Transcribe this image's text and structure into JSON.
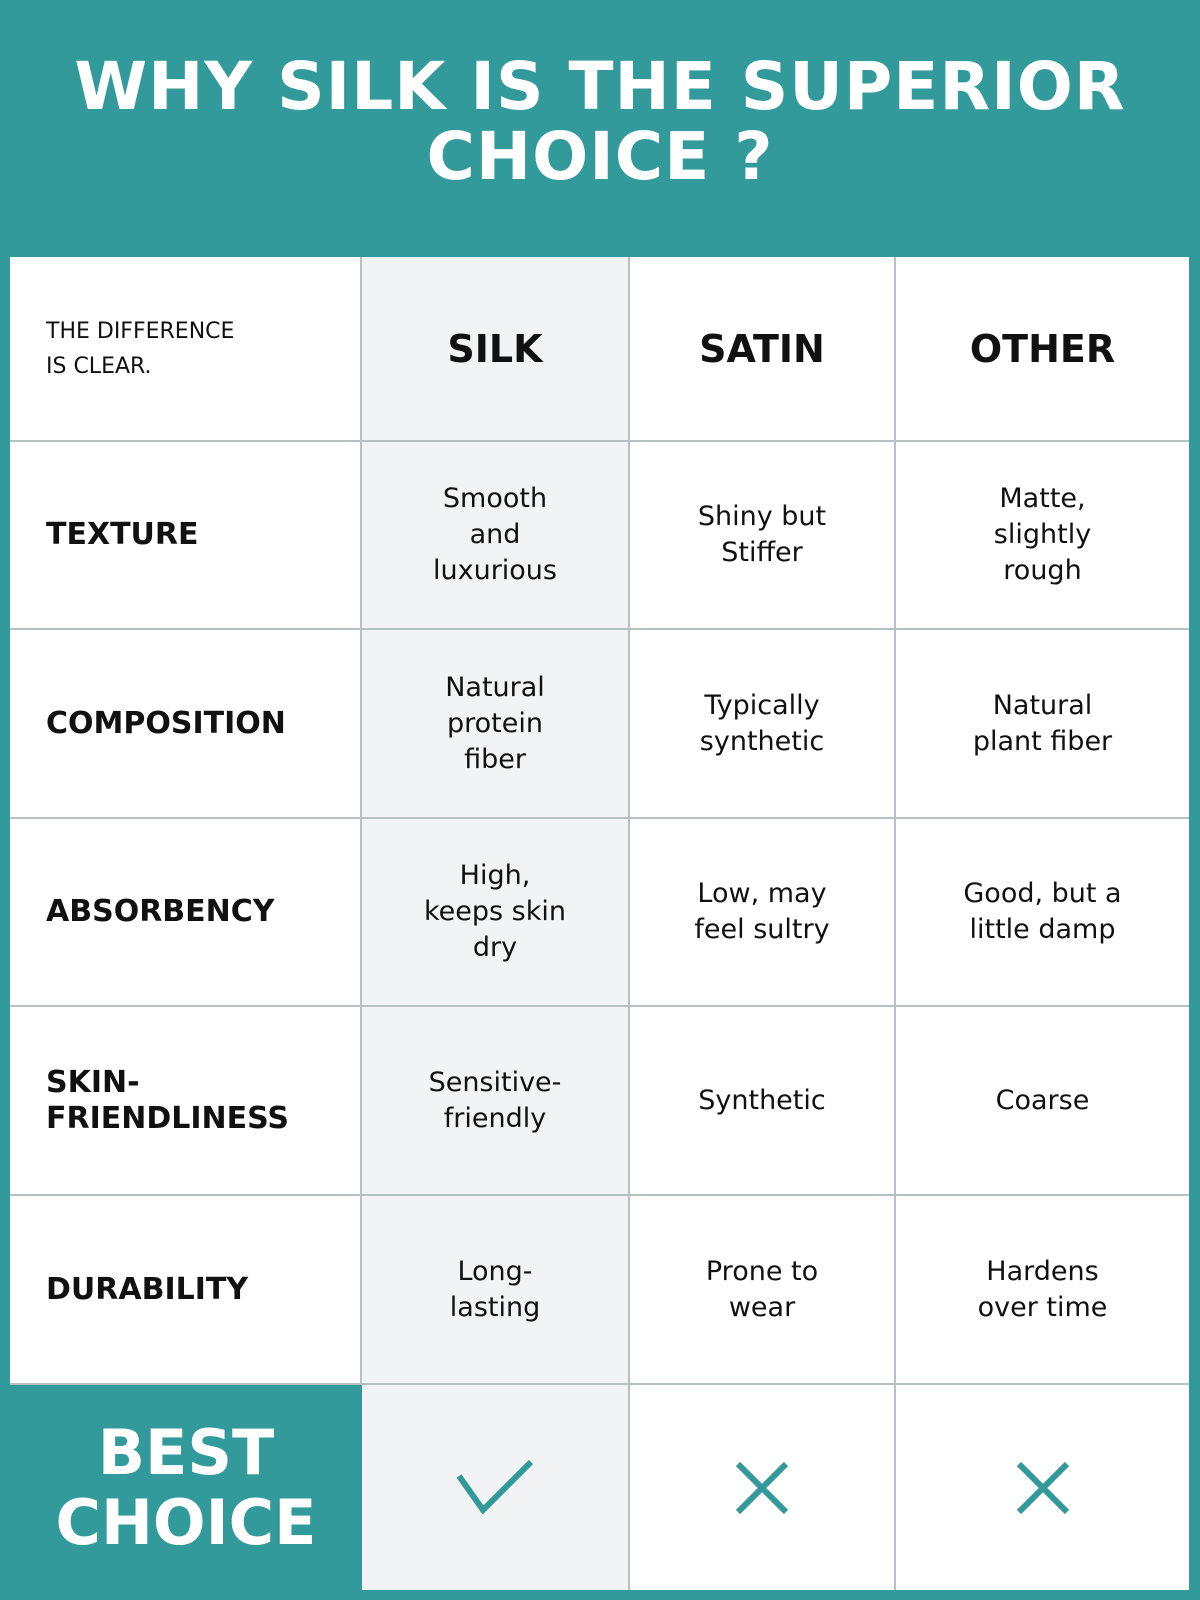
{
  "title": "WHY SILK IS THE SUPERIOR CHOICE ?",
  "table": {
    "corner_label": "THE DIFFERENCE IS CLEAR.",
    "columns": [
      "SILK",
      "SATIN",
      "OTHER"
    ],
    "rows": [
      {
        "label": "TEXTURE",
        "values": [
          "Smooth and luxurious",
          "Shiny but Stiffer",
          "Matte, slightly rough"
        ]
      },
      {
        "label": "COMPOSITION",
        "values": [
          "Natural protein fiber",
          "Typically synthetic",
          "Natural plant fiber"
        ]
      },
      {
        "label": "ABSORBENCY",
        "values": [
          "High, keeps skin dry",
          "Low, may feel sultry",
          "Good, but a little damp"
        ]
      },
      {
        "label": "SKIN-FRIENDLINESS",
        "values": [
          "Sensitive-friendly",
          "Synthetic",
          "Coarse"
        ]
      },
      {
        "label": "DURABILITY",
        "values": [
          "Long-lasting",
          "Prone to wear",
          "Hardens over time"
        ]
      }
    ],
    "best_choice": {
      "label": "BEST CHOICE",
      "marks": [
        "check-icon",
        "x-icon",
        "x-icon"
      ]
    }
  },
  "colors": {
    "accent": "#339a9c",
    "silk_column_bg": "#f2f3f5",
    "grid_line": "#b5c2c3"
  }
}
